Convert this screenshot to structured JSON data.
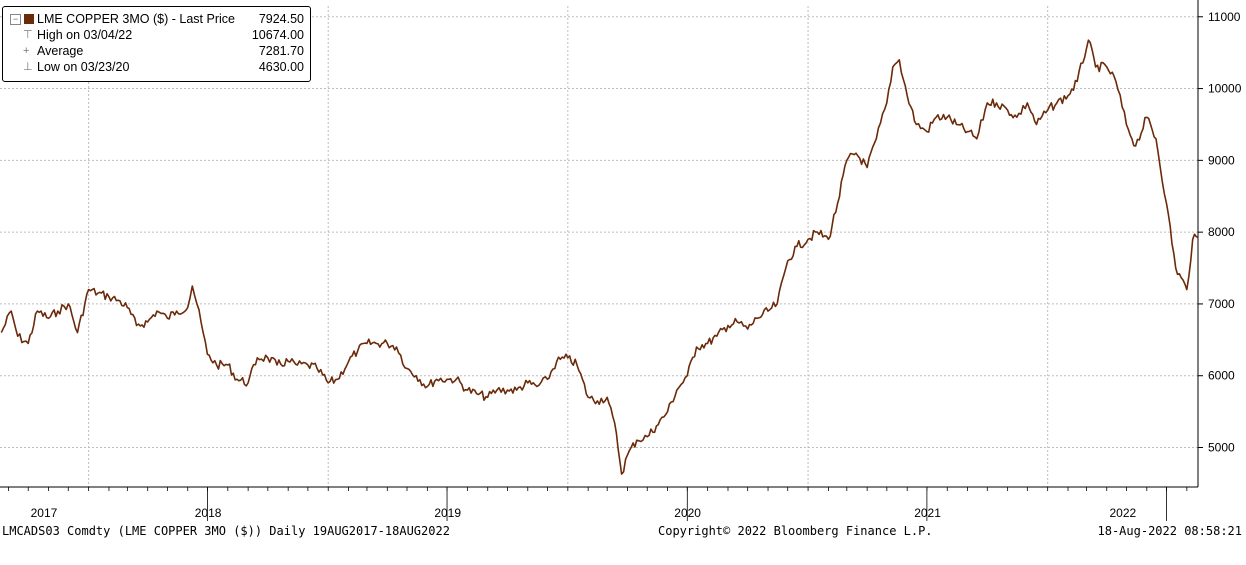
{
  "legend": {
    "title_label": "LME COPPER 3MO ($)  - Last Price",
    "title_value": "7924.50",
    "high_label": "High on 03/04/22",
    "high_value": "10674.00",
    "avg_label": "Average",
    "avg_value": "7281.70",
    "low_label": "Low on 03/23/20",
    "low_value": "4630.00"
  },
  "footer": {
    "left": "LMCADS03 Comdty (LME COPPER   3MO ($))  Daily 19AUG2017-18AUG2022",
    "center": "Copyright© 2022 Bloomberg Finance L.P.",
    "right": "18-Aug-2022 08:58:21"
  },
  "colors": {
    "line": "#6b2a0a",
    "grid": "#bdbdbd",
    "axis": "#000000"
  },
  "chart_data": {
    "type": "line",
    "series": [
      {
        "name": "LME COPPER 3MO ($)  - Last Price",
        "x": [
          "2017-08-21",
          "2017-09-05",
          "2017-09-15",
          "2017-10-01",
          "2017-10-15",
          "2017-11-01",
          "2017-11-15",
          "2017-12-01",
          "2017-12-15",
          "2018-01-01",
          "2018-01-15",
          "2018-02-01",
          "2018-02-15",
          "2018-03-01",
          "2018-03-15",
          "2018-04-01",
          "2018-04-15",
          "2018-05-01",
          "2018-05-15",
          "2018-06-01",
          "2018-06-08",
          "2018-06-15",
          "2018-07-01",
          "2018-07-15",
          "2018-08-01",
          "2018-08-15",
          "2018-09-01",
          "2018-09-15",
          "2018-10-01",
          "2018-10-15",
          "2018-11-01",
          "2018-11-15",
          "2018-12-01",
          "2018-12-15",
          "2019-01-01",
          "2019-01-15",
          "2019-02-01",
          "2019-02-15",
          "2019-03-01",
          "2019-03-15",
          "2019-04-01",
          "2019-04-15",
          "2019-05-01",
          "2019-05-15",
          "2019-06-01",
          "2019-06-15",
          "2019-07-01",
          "2019-07-15",
          "2019-08-01",
          "2019-08-15",
          "2019-09-01",
          "2019-09-15",
          "2019-10-01",
          "2019-10-15",
          "2019-11-01",
          "2019-11-15",
          "2019-12-01",
          "2019-12-15",
          "2020-01-01",
          "2020-01-15",
          "2020-02-01",
          "2020-02-15",
          "2020-03-01",
          "2020-03-15",
          "2020-03-23",
          "2020-04-01",
          "2020-04-15",
          "2020-05-01",
          "2020-05-15",
          "2020-06-01",
          "2020-06-15",
          "2020-07-01",
          "2020-07-15",
          "2020-08-01",
          "2020-08-15",
          "2020-09-01",
          "2020-09-15",
          "2020-10-01",
          "2020-10-15",
          "2020-11-01",
          "2020-11-15",
          "2020-12-01",
          "2020-12-15",
          "2021-01-01",
          "2021-01-15",
          "2021-02-01",
          "2021-02-15",
          "2021-03-01",
          "2021-03-15",
          "2021-04-01",
          "2021-04-15",
          "2021-05-01",
          "2021-05-10",
          "2021-05-20",
          "2021-06-01",
          "2021-06-15",
          "2021-07-01",
          "2021-07-15",
          "2021-08-01",
          "2021-08-15",
          "2021-09-01",
          "2021-09-15",
          "2021-10-01",
          "2021-10-15",
          "2021-11-01",
          "2021-11-15",
          "2021-12-01",
          "2021-12-15",
          "2022-01-01",
          "2022-01-15",
          "2022-02-01",
          "2022-02-15",
          "2022-03-04",
          "2022-03-15",
          "2022-04-01",
          "2022-04-15",
          "2022-05-01",
          "2022-05-15",
          "2022-06-01",
          "2022-06-15",
          "2022-07-01",
          "2022-07-15",
          "2022-08-01",
          "2022-08-10",
          "2022-08-18"
        ],
        "y": [
          6600,
          6900,
          6550,
          6450,
          6900,
          6800,
          6900,
          7000,
          6600,
          7200,
          7150,
          7100,
          7050,
          6950,
          6700,
          6750,
          6900,
          6800,
          6900,
          6950,
          7250,
          7000,
          6300,
          6150,
          6150,
          5950,
          5900,
          6250,
          6250,
          6150,
          6200,
          6150,
          6150,
          6100,
          5900,
          5950,
          6200,
          6350,
          6450,
          6450,
          6450,
          6400,
          6100,
          6000,
          5850,
          5950,
          5950,
          5950,
          5800,
          5750,
          5700,
          5800,
          5800,
          5800,
          5900,
          5850,
          5950,
          6200,
          6250,
          6150,
          5700,
          5650,
          5700,
          5200,
          4630,
          4900,
          5100,
          5150,
          5300,
          5500,
          5800,
          6000,
          6400,
          6450,
          6550,
          6700,
          6750,
          6650,
          6800,
          6900,
          7000,
          7600,
          7800,
          7900,
          8000,
          7900,
          8400,
          9000,
          9100,
          8900,
          9300,
          9800,
          10300,
          10400,
          9900,
          9500,
          9400,
          9600,
          9600,
          9500,
          9400,
          9300,
          9800,
          9800,
          9700,
          9600,
          9800,
          9500,
          9700,
          9800,
          9900,
          10100,
          10674,
          10300,
          10300,
          10100,
          9500,
          9200,
          9600,
          9300,
          8400,
          7500,
          7200,
          7900,
          7924.5
        ]
      }
    ],
    "xlabel": "",
    "ylabel": "",
    "year_ticks": [
      "2017",
      "2018",
      "2019",
      "2020",
      "2021",
      "2022"
    ],
    "yticks": [
      5000,
      6000,
      7000,
      8000,
      9000,
      10000,
      11000
    ],
    "ylim": [
      4450,
      11150
    ],
    "xlim": [
      "2017-08-19",
      "2022-08-18"
    ],
    "grid": true,
    "y_axis_side": "right",
    "legend_position": "top-left"
  }
}
